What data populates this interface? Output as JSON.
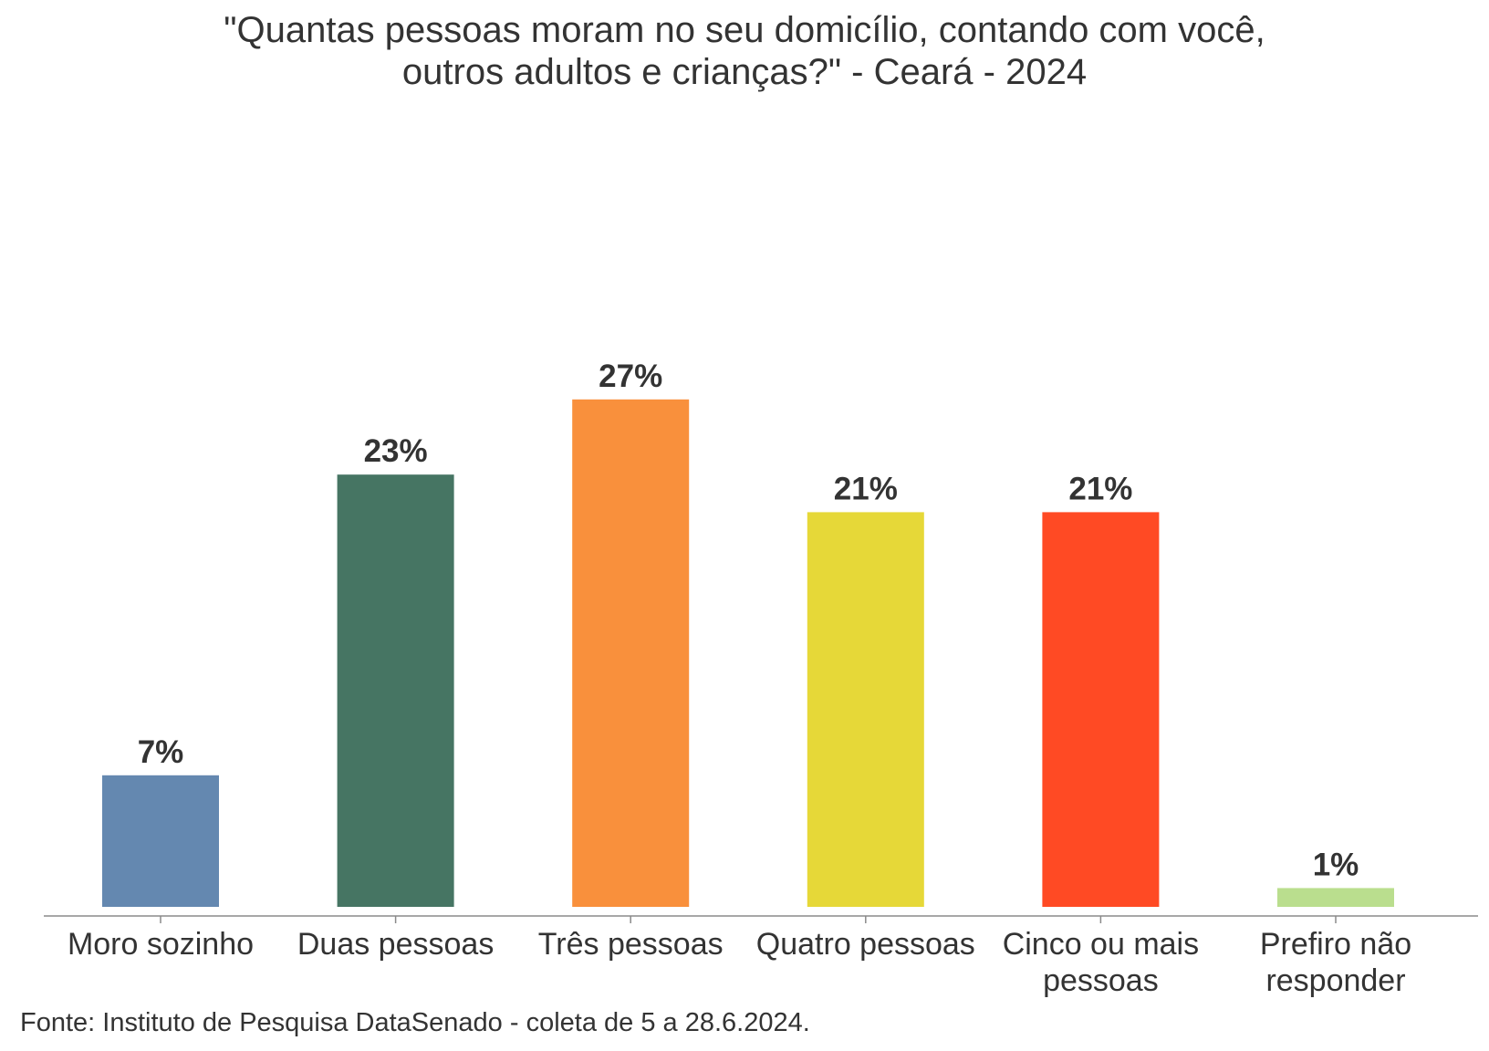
{
  "title_lines": [
    "\"Quantas pessoas moram no seu domicílio, contando com você,",
    "outros adultos e crianças?\" - Ceará - 2024"
  ],
  "source": "Fonte: Instituto de Pesquisa DataSenado - coleta de 5 a 28.6.2024.",
  "chart_data": {
    "type": "bar",
    "title": "\"Quantas pessoas moram no seu domicílio, contando com você, outros adultos e crianças?\" - Ceará - 2024",
    "categories": [
      "Moro sozinho",
      "Duas pessoas",
      "Três pessoas",
      "Quatro pessoas",
      "Cinco ou mais pessoas",
      "Prefiro não responder"
    ],
    "category_label_lines": [
      [
        "Moro sozinho"
      ],
      [
        "Duas pessoas"
      ],
      [
        "Três pessoas"
      ],
      [
        "Quatro pessoas"
      ],
      [
        "Cinco ou mais",
        "pessoas"
      ],
      [
        "Prefiro não",
        "responder"
      ]
    ],
    "values": [
      7,
      23,
      27,
      21,
      21,
      1
    ],
    "data_labels": [
      "7%",
      "23%",
      "27%",
      "21%",
      "21%",
      "1%"
    ],
    "colors": [
      "#6488b0",
      "#467563",
      "#f9903c",
      "#e6d838",
      "#ff4a24",
      "#bade8e"
    ],
    "xlabel": "",
    "ylabel": "",
    "ylim": [
      0,
      27
    ],
    "grid": false,
    "legend": "none"
  }
}
